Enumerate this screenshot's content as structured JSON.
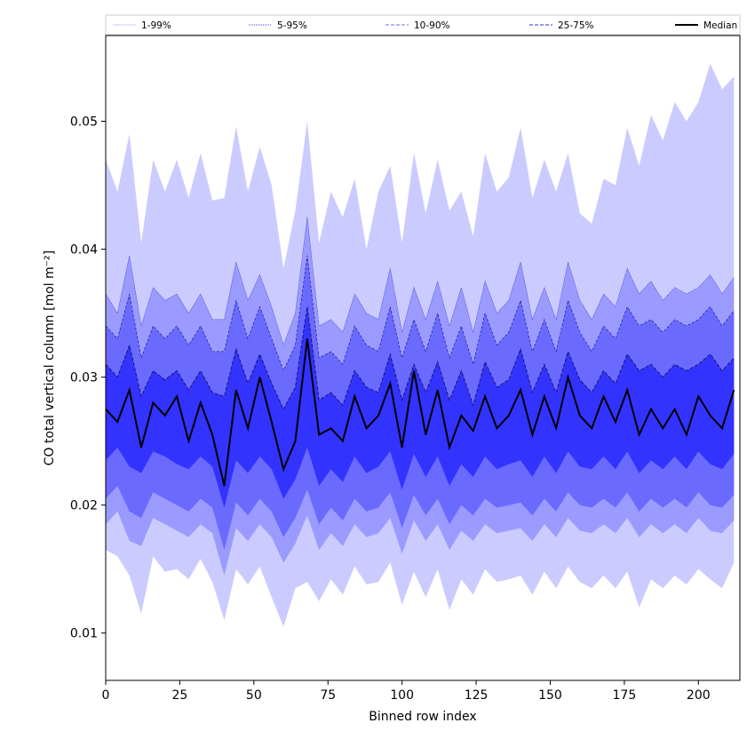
{
  "chart_data": {
    "type": "area",
    "xlabel": "Binned row index",
    "ylabel": "CO total vertical column [mol m⁻²]",
    "xlim": [
      0,
      214
    ],
    "ylim": [
      0.0063,
      0.0567
    ],
    "x_ticks": [
      0,
      25,
      50,
      75,
      100,
      125,
      150,
      175,
      200
    ],
    "y_ticks": [
      0.01,
      0.02,
      0.03,
      0.04,
      0.05
    ],
    "x_tick_labels": [
      "0",
      "25",
      "50",
      "75",
      "100",
      "125",
      "150",
      "175",
      "200"
    ],
    "y_tick_labels": [
      "0.01",
      "0.02",
      "0.03",
      "0.04",
      "0.05"
    ],
    "grid": false,
    "legend_position": "top",
    "legend": [
      {
        "name": "1-99%",
        "color": "#c8c8ff",
        "dash": "solid"
      },
      {
        "name": "5-95%",
        "color": "#4444ee",
        "dash": "dotted"
      },
      {
        "name": "10-90%",
        "color": "#6e6ef5",
        "dash": "dashed"
      },
      {
        "name": "25-75%",
        "color": "#3333dd",
        "dash": "dashed"
      },
      {
        "name": "Median",
        "color": "#000000",
        "dash": "solid"
      }
    ],
    "x_step": 4,
    "x": [
      0,
      4,
      8,
      12,
      16,
      20,
      24,
      28,
      32,
      36,
      40,
      44,
      48,
      52,
      56,
      60,
      64,
      68,
      72,
      76,
      80,
      84,
      88,
      92,
      96,
      100,
      104,
      108,
      112,
      116,
      120,
      124,
      128,
      132,
      136,
      140,
      144,
      148,
      152,
      156,
      160,
      164,
      168,
      172,
      176,
      180,
      184,
      188,
      192,
      196,
      200,
      204,
      208,
      212
    ],
    "series": [
      {
        "name": "1-99% upper",
        "values": [
          0.047,
          0.0445,
          0.049,
          0.0405,
          0.047,
          0.0445,
          0.047,
          0.044,
          0.0475,
          0.0438,
          0.044,
          0.0496,
          0.0445,
          0.048,
          0.045,
          0.0385,
          0.043,
          0.05,
          0.0405,
          0.0445,
          0.0425,
          0.0455,
          0.04,
          0.0445,
          0.0465,
          0.0405,
          0.0475,
          0.0428,
          0.047,
          0.043,
          0.0445,
          0.041,
          0.0475,
          0.0445,
          0.0456,
          0.0495,
          0.044,
          0.047,
          0.0445,
          0.0475,
          0.0428,
          0.042,
          0.0455,
          0.045,
          0.0495,
          0.0465,
          0.0505,
          0.0485,
          0.0515,
          0.05,
          0.0515,
          0.0545,
          0.0525,
          0.0535
        ]
      },
      {
        "name": "5-95% upper",
        "values": [
          0.0365,
          0.035,
          0.0395,
          0.034,
          0.037,
          0.036,
          0.0365,
          0.035,
          0.0365,
          0.0345,
          0.0345,
          0.039,
          0.036,
          0.038,
          0.0355,
          0.0325,
          0.035,
          0.0425,
          0.034,
          0.0345,
          0.0335,
          0.0365,
          0.035,
          0.0345,
          0.0385,
          0.0335,
          0.037,
          0.0345,
          0.0375,
          0.034,
          0.037,
          0.0335,
          0.0375,
          0.035,
          0.036,
          0.039,
          0.0345,
          0.037,
          0.0345,
          0.039,
          0.036,
          0.0345,
          0.0365,
          0.0355,
          0.0385,
          0.0365,
          0.0375,
          0.036,
          0.037,
          0.0365,
          0.037,
          0.038,
          0.0365,
          0.0378
        ]
      },
      {
        "name": "10-90% upper",
        "values": [
          0.034,
          0.033,
          0.0365,
          0.0315,
          0.034,
          0.033,
          0.034,
          0.0325,
          0.034,
          0.032,
          0.032,
          0.036,
          0.033,
          0.0355,
          0.033,
          0.0305,
          0.0325,
          0.0395,
          0.0315,
          0.032,
          0.031,
          0.034,
          0.0325,
          0.032,
          0.0355,
          0.0315,
          0.0345,
          0.032,
          0.035,
          0.0315,
          0.034,
          0.031,
          0.035,
          0.0325,
          0.0335,
          0.036,
          0.032,
          0.0345,
          0.032,
          0.036,
          0.0335,
          0.032,
          0.034,
          0.033,
          0.0355,
          0.034,
          0.0345,
          0.0335,
          0.0345,
          0.034,
          0.0345,
          0.0355,
          0.034,
          0.0352
        ]
      },
      {
        "name": "25-75% upper",
        "values": [
          0.031,
          0.03,
          0.0325,
          0.0285,
          0.0305,
          0.0298,
          0.0305,
          0.029,
          0.0305,
          0.0288,
          0.0285,
          0.0322,
          0.0295,
          0.0318,
          0.0295,
          0.0275,
          0.0292,
          0.0355,
          0.0282,
          0.0288,
          0.0278,
          0.0305,
          0.0292,
          0.0288,
          0.0318,
          0.0282,
          0.031,
          0.0288,
          0.0312,
          0.0282,
          0.0305,
          0.0278,
          0.0312,
          0.0292,
          0.0298,
          0.0322,
          0.0288,
          0.031,
          0.0288,
          0.032,
          0.0298,
          0.0288,
          0.0305,
          0.0295,
          0.0318,
          0.0305,
          0.031,
          0.03,
          0.031,
          0.0305,
          0.031,
          0.0318,
          0.0305,
          0.0315
        ]
      },
      {
        "name": "Median",
        "values": [
          0.0275,
          0.0265,
          0.029,
          0.0245,
          0.028,
          0.027,
          0.0285,
          0.025,
          0.028,
          0.0255,
          0.0215,
          0.029,
          0.026,
          0.03,
          0.0265,
          0.0228,
          0.025,
          0.033,
          0.0255,
          0.026,
          0.025,
          0.0285,
          0.026,
          0.027,
          0.0295,
          0.0245,
          0.0305,
          0.0255,
          0.029,
          0.0245,
          0.027,
          0.0258,
          0.0285,
          0.026,
          0.027,
          0.029,
          0.0255,
          0.0285,
          0.026,
          0.03,
          0.027,
          0.026,
          0.0285,
          0.0265,
          0.029,
          0.0255,
          0.0275,
          0.026,
          0.0275,
          0.0255,
          0.0285,
          0.027,
          0.026,
          0.029
        ]
      },
      {
        "name": "25-75% lower",
        "values": [
          0.0235,
          0.0245,
          0.023,
          0.0225,
          0.0242,
          0.0238,
          0.0232,
          0.0228,
          0.0238,
          0.023,
          0.0198,
          0.0235,
          0.0225,
          0.0238,
          0.0228,
          0.0205,
          0.022,
          0.0245,
          0.0215,
          0.0228,
          0.0218,
          0.0238,
          0.0225,
          0.023,
          0.0242,
          0.0212,
          0.024,
          0.0222,
          0.0238,
          0.0215,
          0.0232,
          0.0222,
          0.0238,
          0.0228,
          0.0232,
          0.0235,
          0.0222,
          0.0238,
          0.0225,
          0.0242,
          0.023,
          0.0228,
          0.0238,
          0.0228,
          0.0242,
          0.0225,
          0.0235,
          0.0228,
          0.0238,
          0.0228,
          0.0242,
          0.0232,
          0.0228,
          0.024
        ]
      },
      {
        "name": "10-90% lower",
        "values": [
          0.0205,
          0.0215,
          0.0195,
          0.019,
          0.021,
          0.0205,
          0.02,
          0.0195,
          0.0205,
          0.0198,
          0.0165,
          0.0202,
          0.0192,
          0.0205,
          0.0195,
          0.0175,
          0.019,
          0.0212,
          0.0185,
          0.0198,
          0.0188,
          0.0205,
          0.0195,
          0.0198,
          0.021,
          0.0182,
          0.0208,
          0.0192,
          0.0205,
          0.0185,
          0.02,
          0.0192,
          0.0205,
          0.0198,
          0.02,
          0.0202,
          0.0192,
          0.0205,
          0.0195,
          0.021,
          0.02,
          0.0198,
          0.0205,
          0.0198,
          0.021,
          0.0195,
          0.0205,
          0.0198,
          0.0205,
          0.0198,
          0.021,
          0.02,
          0.0198,
          0.0208
        ]
      },
      {
        "name": "5-95% lower",
        "values": [
          0.0185,
          0.0195,
          0.0172,
          0.0168,
          0.019,
          0.0185,
          0.018,
          0.0175,
          0.0185,
          0.0178,
          0.0145,
          0.0182,
          0.0172,
          0.0185,
          0.0175,
          0.0155,
          0.017,
          0.0192,
          0.0165,
          0.0178,
          0.0168,
          0.0185,
          0.0175,
          0.0178,
          0.019,
          0.0162,
          0.0188,
          0.0172,
          0.0185,
          0.0165,
          0.018,
          0.0172,
          0.0185,
          0.0178,
          0.018,
          0.0182,
          0.0172,
          0.0185,
          0.0175,
          0.019,
          0.018,
          0.0178,
          0.0185,
          0.0178,
          0.019,
          0.0175,
          0.0185,
          0.0178,
          0.0185,
          0.0178,
          0.019,
          0.018,
          0.0178,
          0.0188
        ]
      },
      {
        "name": "1-99% lower",
        "values": [
          0.0165,
          0.016,
          0.0145,
          0.0115,
          0.016,
          0.0148,
          0.015,
          0.0142,
          0.0158,
          0.014,
          0.011,
          0.015,
          0.0138,
          0.0152,
          0.0128,
          0.0105,
          0.0135,
          0.014,
          0.0125,
          0.0142,
          0.013,
          0.0152,
          0.0138,
          0.014,
          0.0155,
          0.0122,
          0.0148,
          0.0128,
          0.015,
          0.0118,
          0.0142,
          0.013,
          0.015,
          0.014,
          0.0142,
          0.0145,
          0.013,
          0.0148,
          0.0135,
          0.0152,
          0.014,
          0.0135,
          0.0145,
          0.0135,
          0.0148,
          0.012,
          0.0142,
          0.0135,
          0.0145,
          0.0138,
          0.015,
          0.0142,
          0.0135,
          0.0155
        ]
      }
    ]
  }
}
